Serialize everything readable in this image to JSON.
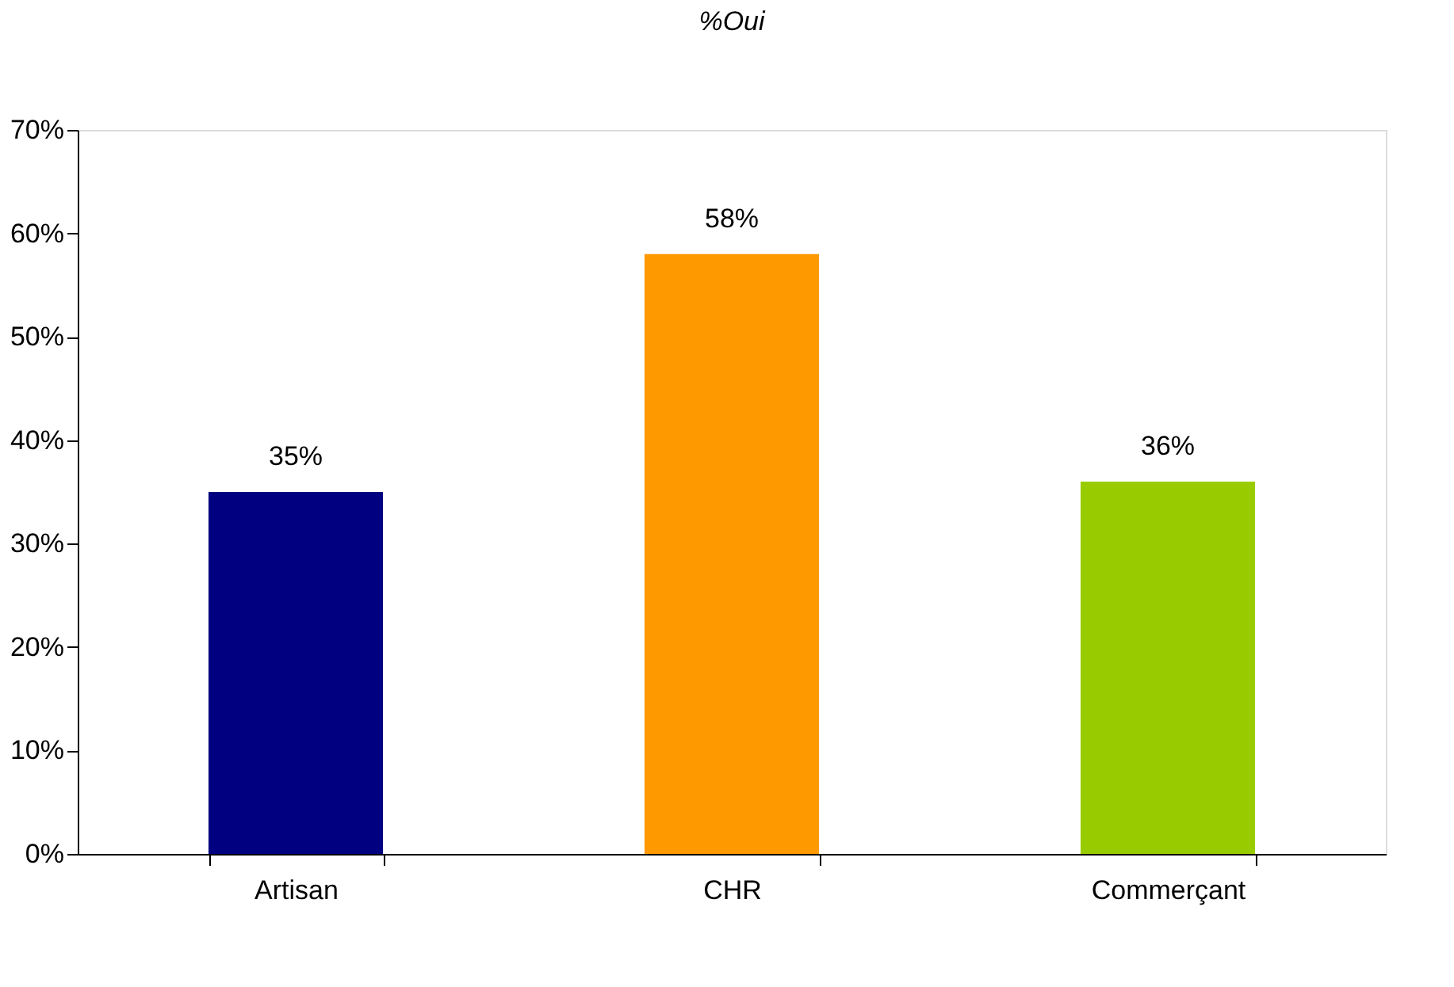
{
  "chart_data": {
    "type": "bar",
    "title": "%Oui",
    "categories": [
      "Artisan",
      "CHR",
      "Commerçant"
    ],
    "values": [
      35,
      58,
      36
    ],
    "colors": [
      "#000080",
      "#ff9900",
      "#99cc00"
    ],
    "value_labels": [
      "35%",
      "58%",
      "36%"
    ],
    "ylim": [
      0,
      70
    ],
    "yticks": [
      {
        "value": 0,
        "label": "0%"
      },
      {
        "value": 10,
        "label": "10%"
      },
      {
        "value": 20,
        "label": "20%"
      },
      {
        "value": 30,
        "label": "30%"
      },
      {
        "value": 40,
        "label": "40%"
      },
      {
        "value": 50,
        "label": "50%"
      },
      {
        "value": 60,
        "label": "60%"
      },
      {
        "value": 70,
        "label": "70%"
      }
    ],
    "grid": false,
    "legend": false
  }
}
